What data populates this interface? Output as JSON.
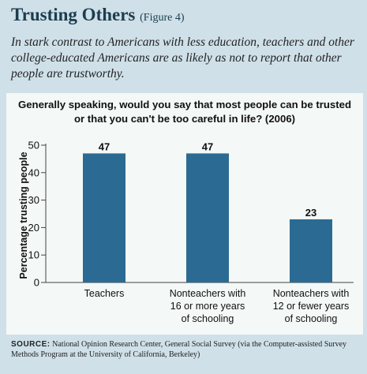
{
  "header": {
    "title": "Trusting Others",
    "figure_label": "(Figure 4)",
    "subtitle": "In stark contrast to Americans with less education, teachers and other college-educated Americans are as likely as not to report that other people are trustworthy."
  },
  "colors": {
    "bar": "#2b6b93",
    "panel": "#f4f8f6",
    "background": "#cfe0e8",
    "title": "#1b3d4f"
  },
  "chart_data": {
    "type": "bar",
    "title_lines": [
      "Generally speaking, would you say that most people can be trusted",
      "or that you can't be too careful in life? (2006)"
    ],
    "ylabel": "Percentage trusting people",
    "xlabel": "",
    "ylim": [
      0,
      50
    ],
    "yticks": [
      0,
      10,
      20,
      30,
      40,
      50
    ],
    "categories": [
      [
        "Teachers"
      ],
      [
        "Nonteachers with",
        "16 or more years",
        "of schooling"
      ],
      [
        "Nonteachers with",
        "12 or fewer years",
        "of schooling"
      ]
    ],
    "values": [
      47,
      47,
      23
    ],
    "data_labels": [
      "47",
      "47",
      "23"
    ],
    "grid": false,
    "legend": "none"
  },
  "source": {
    "label": "SOURCE:",
    "text": " National Opinion Research Center, General Social Survey (via the Computer-assisted Survey Methods Program at the University of California, Berkeley)"
  }
}
